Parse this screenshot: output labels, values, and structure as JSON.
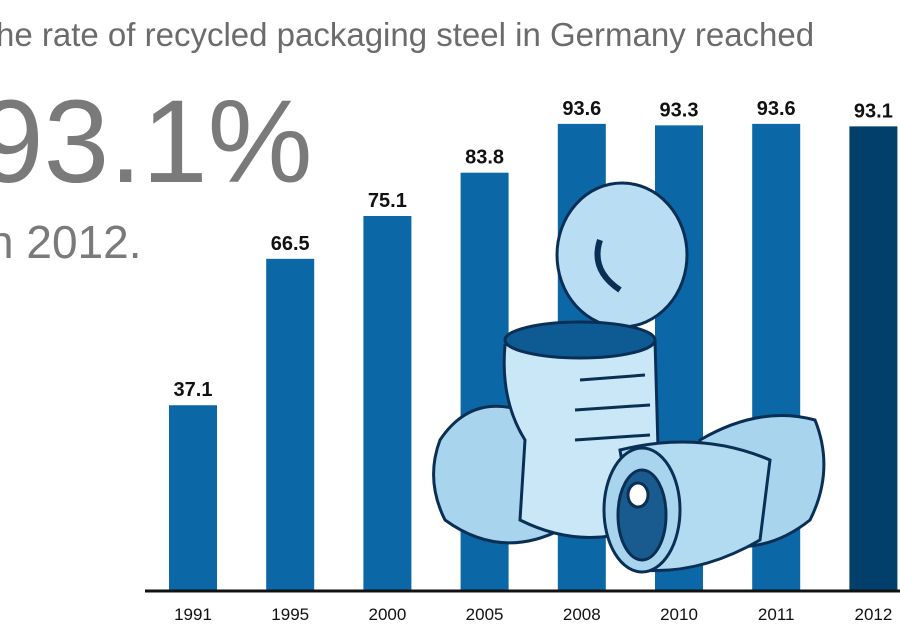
{
  "chart_data": {
    "type": "bar",
    "title": "he rate of recycled packaging steel in Germany reached",
    "headline": "93.1%",
    "subtitle": "n 2012.",
    "categories": [
      "1991",
      "1995",
      "2000",
      "2005",
      "2008",
      "2010",
      "2011",
      "2012"
    ],
    "values": [
      37.1,
      66.5,
      75.1,
      83.8,
      93.6,
      93.3,
      93.6,
      93.1
    ],
    "colors": [
      "#0b67a6",
      "#0b67a6",
      "#0b67a6",
      "#0b67a6",
      "#0b67a6",
      "#0b67a6",
      "#0b67a6",
      "#033f6b"
    ],
    "ylim": [
      0,
      100
    ]
  }
}
